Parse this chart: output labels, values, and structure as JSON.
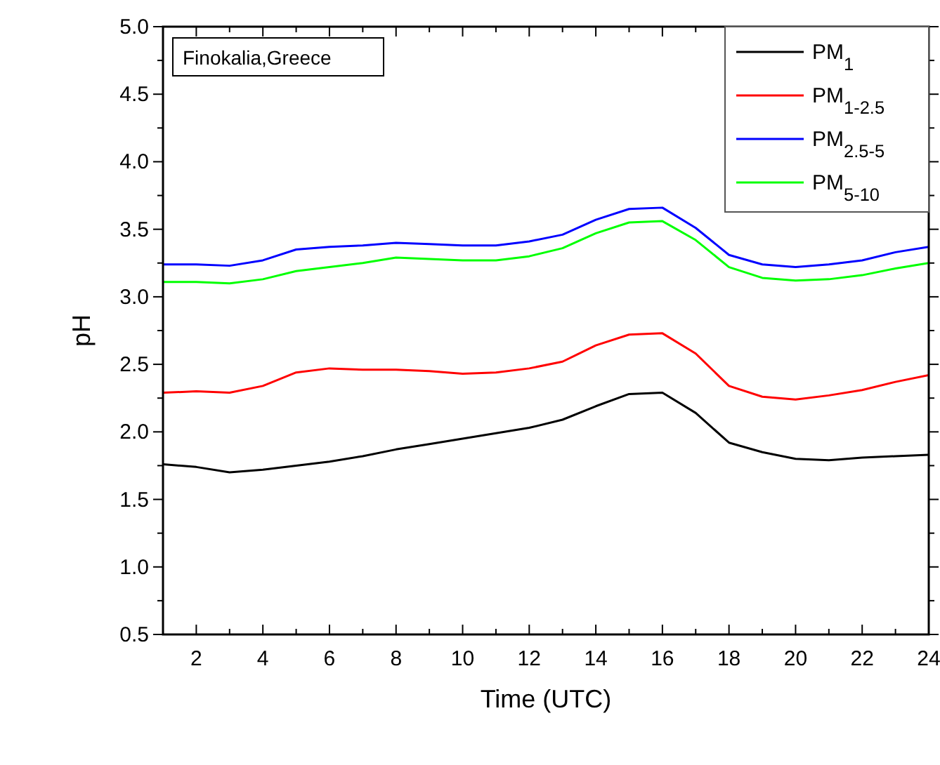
{
  "chart_data": {
    "type": "line",
    "xlabel": "Time (UTC)",
    "ylabel": "pH",
    "annotations": [
      "Finokalia,Greece"
    ],
    "x": [
      1,
      2,
      3,
      4,
      5,
      6,
      7,
      8,
      9,
      10,
      11,
      12,
      13,
      14,
      15,
      16,
      17,
      18,
      19,
      20,
      21,
      22,
      23,
      24
    ],
    "xlim": [
      1,
      24
    ],
    "xticks": [
      2,
      4,
      6,
      8,
      10,
      12,
      14,
      16,
      18,
      20,
      22,
      24
    ],
    "ylim": [
      0.5,
      5.0
    ],
    "yticks": [
      {
        "value": 0.5,
        "label": "0.5"
      },
      {
        "value": 1.0,
        "label": "1.0"
      },
      {
        "value": 1.5,
        "label": "1.5"
      },
      {
        "value": 2.0,
        "label": "2.0"
      },
      {
        "value": 2.5,
        "label": "2.5"
      },
      {
        "value": 3.0,
        "label": "3.0"
      },
      {
        "value": 3.5,
        "label": "3.5"
      },
      {
        "value": 4.0,
        "label": "4.0"
      },
      {
        "value": 4.5,
        "label": "4.5"
      },
      {
        "value": 5.0,
        "label": "5.0"
      }
    ],
    "legend": "top right",
    "grid": false,
    "marker": "none",
    "line_style": "solid",
    "series": [
      {
        "name": "PM$_{1}$",
        "color": "#000000",
        "values": [
          1.76,
          1.74,
          1.7,
          1.72,
          1.75,
          1.78,
          1.82,
          1.87,
          1.91,
          1.95,
          1.99,
          2.03,
          2.09,
          2.19,
          2.28,
          2.29,
          2.14,
          1.92,
          1.85,
          1.8,
          1.79,
          1.81,
          1.82,
          1.83
        ]
      },
      {
        "name": "PM$_{1-2.5}$",
        "color": "#ff0000",
        "values": [
          2.29,
          2.3,
          2.29,
          2.34,
          2.44,
          2.47,
          2.46,
          2.46,
          2.45,
          2.43,
          2.44,
          2.47,
          2.52,
          2.64,
          2.72,
          2.73,
          2.58,
          2.34,
          2.26,
          2.24,
          2.27,
          2.31,
          2.37,
          2.42
        ]
      },
      {
        "name": "PM$_{2.5-5}$",
        "color": "#0000ff",
        "values": [
          3.24,
          3.24,
          3.23,
          3.27,
          3.35,
          3.37,
          3.38,
          3.4,
          3.39,
          3.38,
          3.38,
          3.41,
          3.46,
          3.57,
          3.65,
          3.66,
          3.51,
          3.31,
          3.24,
          3.22,
          3.24,
          3.27,
          3.33,
          3.37
        ]
      },
      {
        "name": "PM$_{5-10}$",
        "color": "#00ff00",
        "values": [
          3.11,
          3.11,
          3.1,
          3.13,
          3.19,
          3.22,
          3.25,
          3.29,
          3.28,
          3.27,
          3.27,
          3.3,
          3.36,
          3.47,
          3.55,
          3.56,
          3.42,
          3.22,
          3.14,
          3.12,
          3.13,
          3.16,
          3.21,
          3.25
        ]
      }
    ]
  }
}
